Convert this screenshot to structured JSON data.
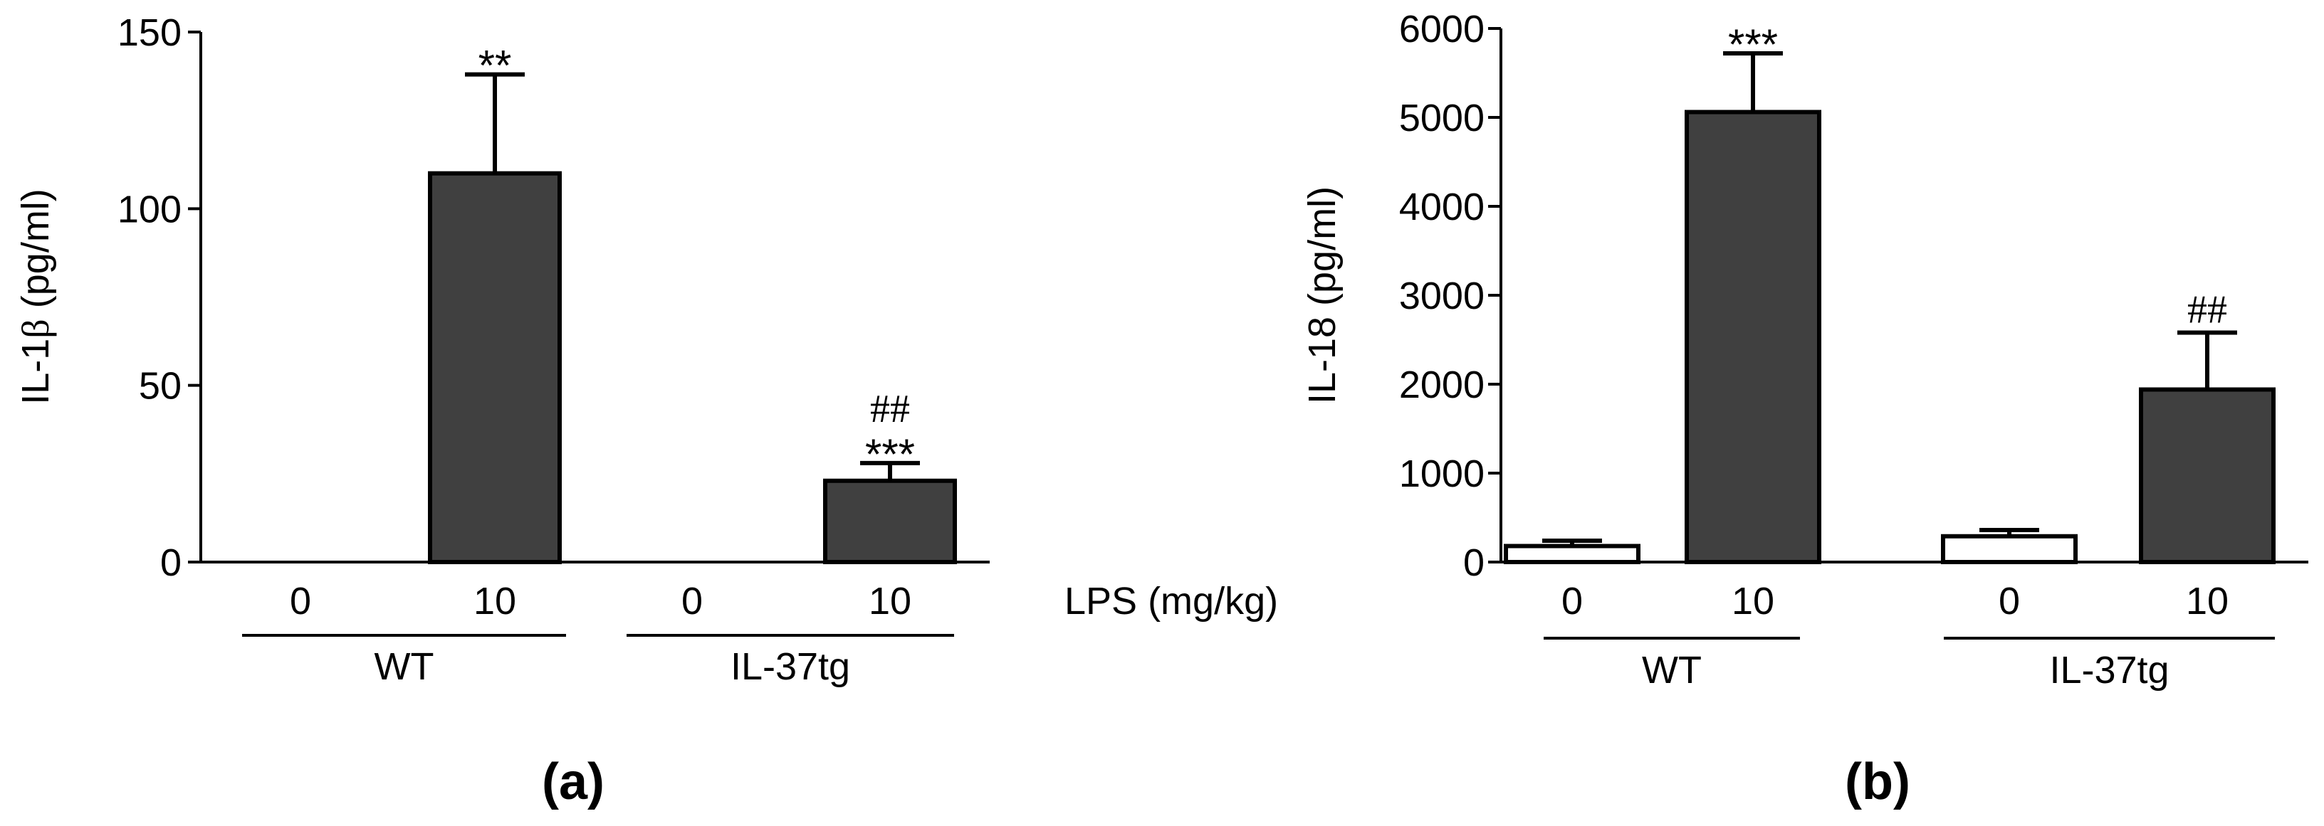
{
  "chart_data": [
    {
      "type": "bar",
      "panel_label": "(a)",
      "ylabel_main": "IL-1",
      "ylabel_symbol": "β",
      "ylabel_unit": " (pg/ml)",
      "ylim": [
        0,
        150
      ],
      "yticks": [
        0,
        50,
        100,
        150
      ],
      "categories": [
        "0",
        "10",
        "0",
        "10"
      ],
      "values": [
        0,
        110,
        0,
        23
      ],
      "errors": [
        0,
        28,
        0,
        5
      ],
      "bar_colors": [
        "#ffffff",
        "#404040",
        "#ffffff",
        "#404040"
      ],
      "sig_stars": [
        "",
        "**",
        "",
        "***"
      ],
      "sig_hash": [
        "",
        "",
        "",
        "##"
      ],
      "groups": [
        "WT",
        "IL-37tg"
      ],
      "x_unit_label": "LPS (mg/kg)",
      "grid": false
    },
    {
      "type": "bar",
      "panel_label": "(b)",
      "ylabel_main": "IL-18 (pg/ml)",
      "ylabel_symbol": "",
      "ylabel_unit": "",
      "ylim": [
        0,
        6000
      ],
      "yticks": [
        0,
        1000,
        2000,
        3000,
        4000,
        5000,
        6000
      ],
      "categories": [
        "0",
        "10",
        "0",
        "10"
      ],
      "values": [
        180,
        5060,
        290,
        1940
      ],
      "errors": [
        60,
        660,
        70,
        640
      ],
      "bar_colors": [
        "#ffffff",
        "#404040",
        "#ffffff",
        "#404040"
      ],
      "sig_stars": [
        "",
        "***",
        "",
        ""
      ],
      "sig_hash": [
        "",
        "",
        "",
        "##"
      ],
      "groups": [
        "WT",
        "IL-37tg"
      ],
      "grid": false
    }
  ]
}
